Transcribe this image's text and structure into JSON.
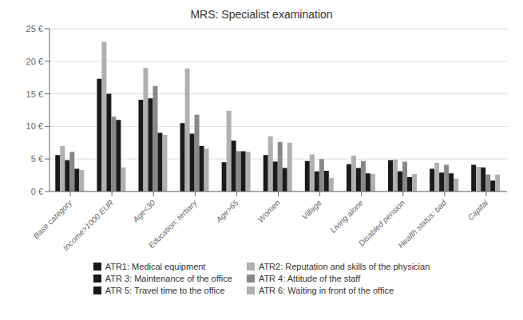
{
  "chart_data": {
    "type": "bar",
    "title": "MRS: Specialist examination",
    "categories": [
      "Base category",
      "Income>1000 EUR",
      "Age<30",
      "Education: tertiary",
      "Age>65",
      "Women",
      "Village",
      "Living alone",
      "Disabled pension",
      "Health status: bad",
      "Capital"
    ],
    "series": [
      {
        "name": "ATR1: Medical equipment",
        "color": "#1a1a1a",
        "values": [
          5.6,
          17.3,
          14.1,
          10.5,
          4.5,
          5.6,
          4.7,
          4.2,
          4.8,
          3.5,
          4.1
        ]
      },
      {
        "name": "ATR2: Reputation and skills of the physician",
        "color": "#b0b0b0",
        "values": [
          7.0,
          23.0,
          19.0,
          18.9,
          12.4,
          8.5,
          5.7,
          5.5,
          4.9,
          4.4,
          3.8
        ]
      },
      {
        "name": "ATR 3: Maintenance of the office",
        "color": "#1a1a1a",
        "values": [
          4.8,
          15.0,
          14.3,
          8.9,
          7.8,
          4.6,
          3.1,
          3.6,
          3.1,
          2.9,
          3.7
        ]
      },
      {
        "name": "ATR 4: Attitude of the staff",
        "color": "#888888",
        "values": [
          6.1,
          11.5,
          16.2,
          11.8,
          6.2,
          7.6,
          5.0,
          4.7,
          4.6,
          4.1,
          2.6
        ]
      },
      {
        "name": "ATR 5: Travel time to the office",
        "color": "#1a1a1a",
        "values": [
          3.5,
          11.0,
          9.0,
          7.0,
          6.2,
          3.6,
          3.2,
          2.8,
          2.2,
          2.8,
          1.7
        ]
      },
      {
        "name": "ATR 6: Waiting in front of the office",
        "color": "#b0b0b0",
        "values": [
          3.3,
          3.7,
          8.7,
          6.6,
          6.1,
          7.5,
          2.1,
          2.7,
          2.7,
          2.0,
          2.6
        ]
      }
    ],
    "ylim": [
      0,
      25
    ],
    "yticks": [
      {
        "value": 0,
        "label": "0 €"
      },
      {
        "value": 5,
        "label": "5 €"
      },
      {
        "value": 10,
        "label": "10 €"
      },
      {
        "value": 15,
        "label": "15 €"
      },
      {
        "value": 20,
        "label": "20 €"
      },
      {
        "value": 25,
        "label": "25 €"
      }
    ],
    "grid": true,
    "legend": "bottom"
  }
}
